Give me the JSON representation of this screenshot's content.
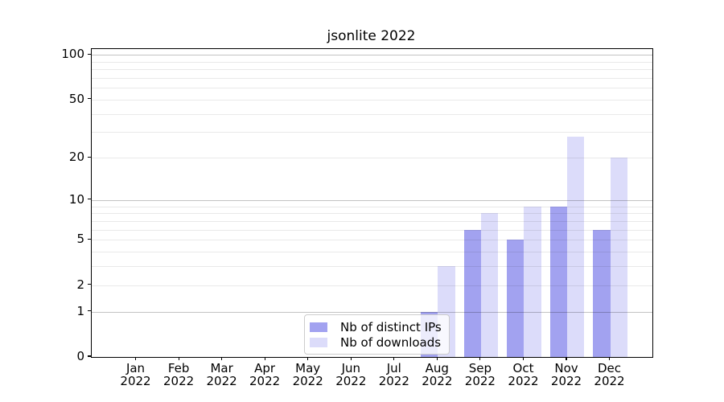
{
  "figure": {
    "background": "#ffffff"
  },
  "chart_data": {
    "type": "bar",
    "title": "jsonlite 2022",
    "categories": [
      "Jan",
      "Feb",
      "Mar",
      "Apr",
      "May",
      "Jun",
      "Jul",
      "Aug",
      "Sep",
      "Oct",
      "Nov",
      "Dec"
    ],
    "category_year": "2022",
    "series": [
      {
        "name": "Nb of distinct IPs",
        "color": "#a2a2f0",
        "values": [
          0,
          0,
          0,
          0,
          0,
          0,
          0,
          1,
          6,
          5,
          9,
          6
        ]
      },
      {
        "name": "Nb of downloads",
        "color": "#dcdcfa",
        "values": [
          0,
          0,
          0,
          0,
          0,
          0,
          0,
          3,
          8,
          9,
          28,
          20
        ]
      }
    ],
    "y_axis": {
      "scale": "log1p",
      "range": [
        0,
        111
      ],
      "ticks": [
        0,
        1,
        2,
        5,
        10,
        20,
        50,
        100
      ],
      "major_gridlines": [
        1,
        10,
        100
      ],
      "minor_gridlines": [
        2,
        3,
        4,
        5,
        6,
        7,
        8,
        9,
        20,
        30,
        40,
        50,
        60,
        70,
        80,
        90
      ]
    },
    "xlabel": "",
    "ylabel": "",
    "grid": true,
    "legend_position": "lower center"
  }
}
